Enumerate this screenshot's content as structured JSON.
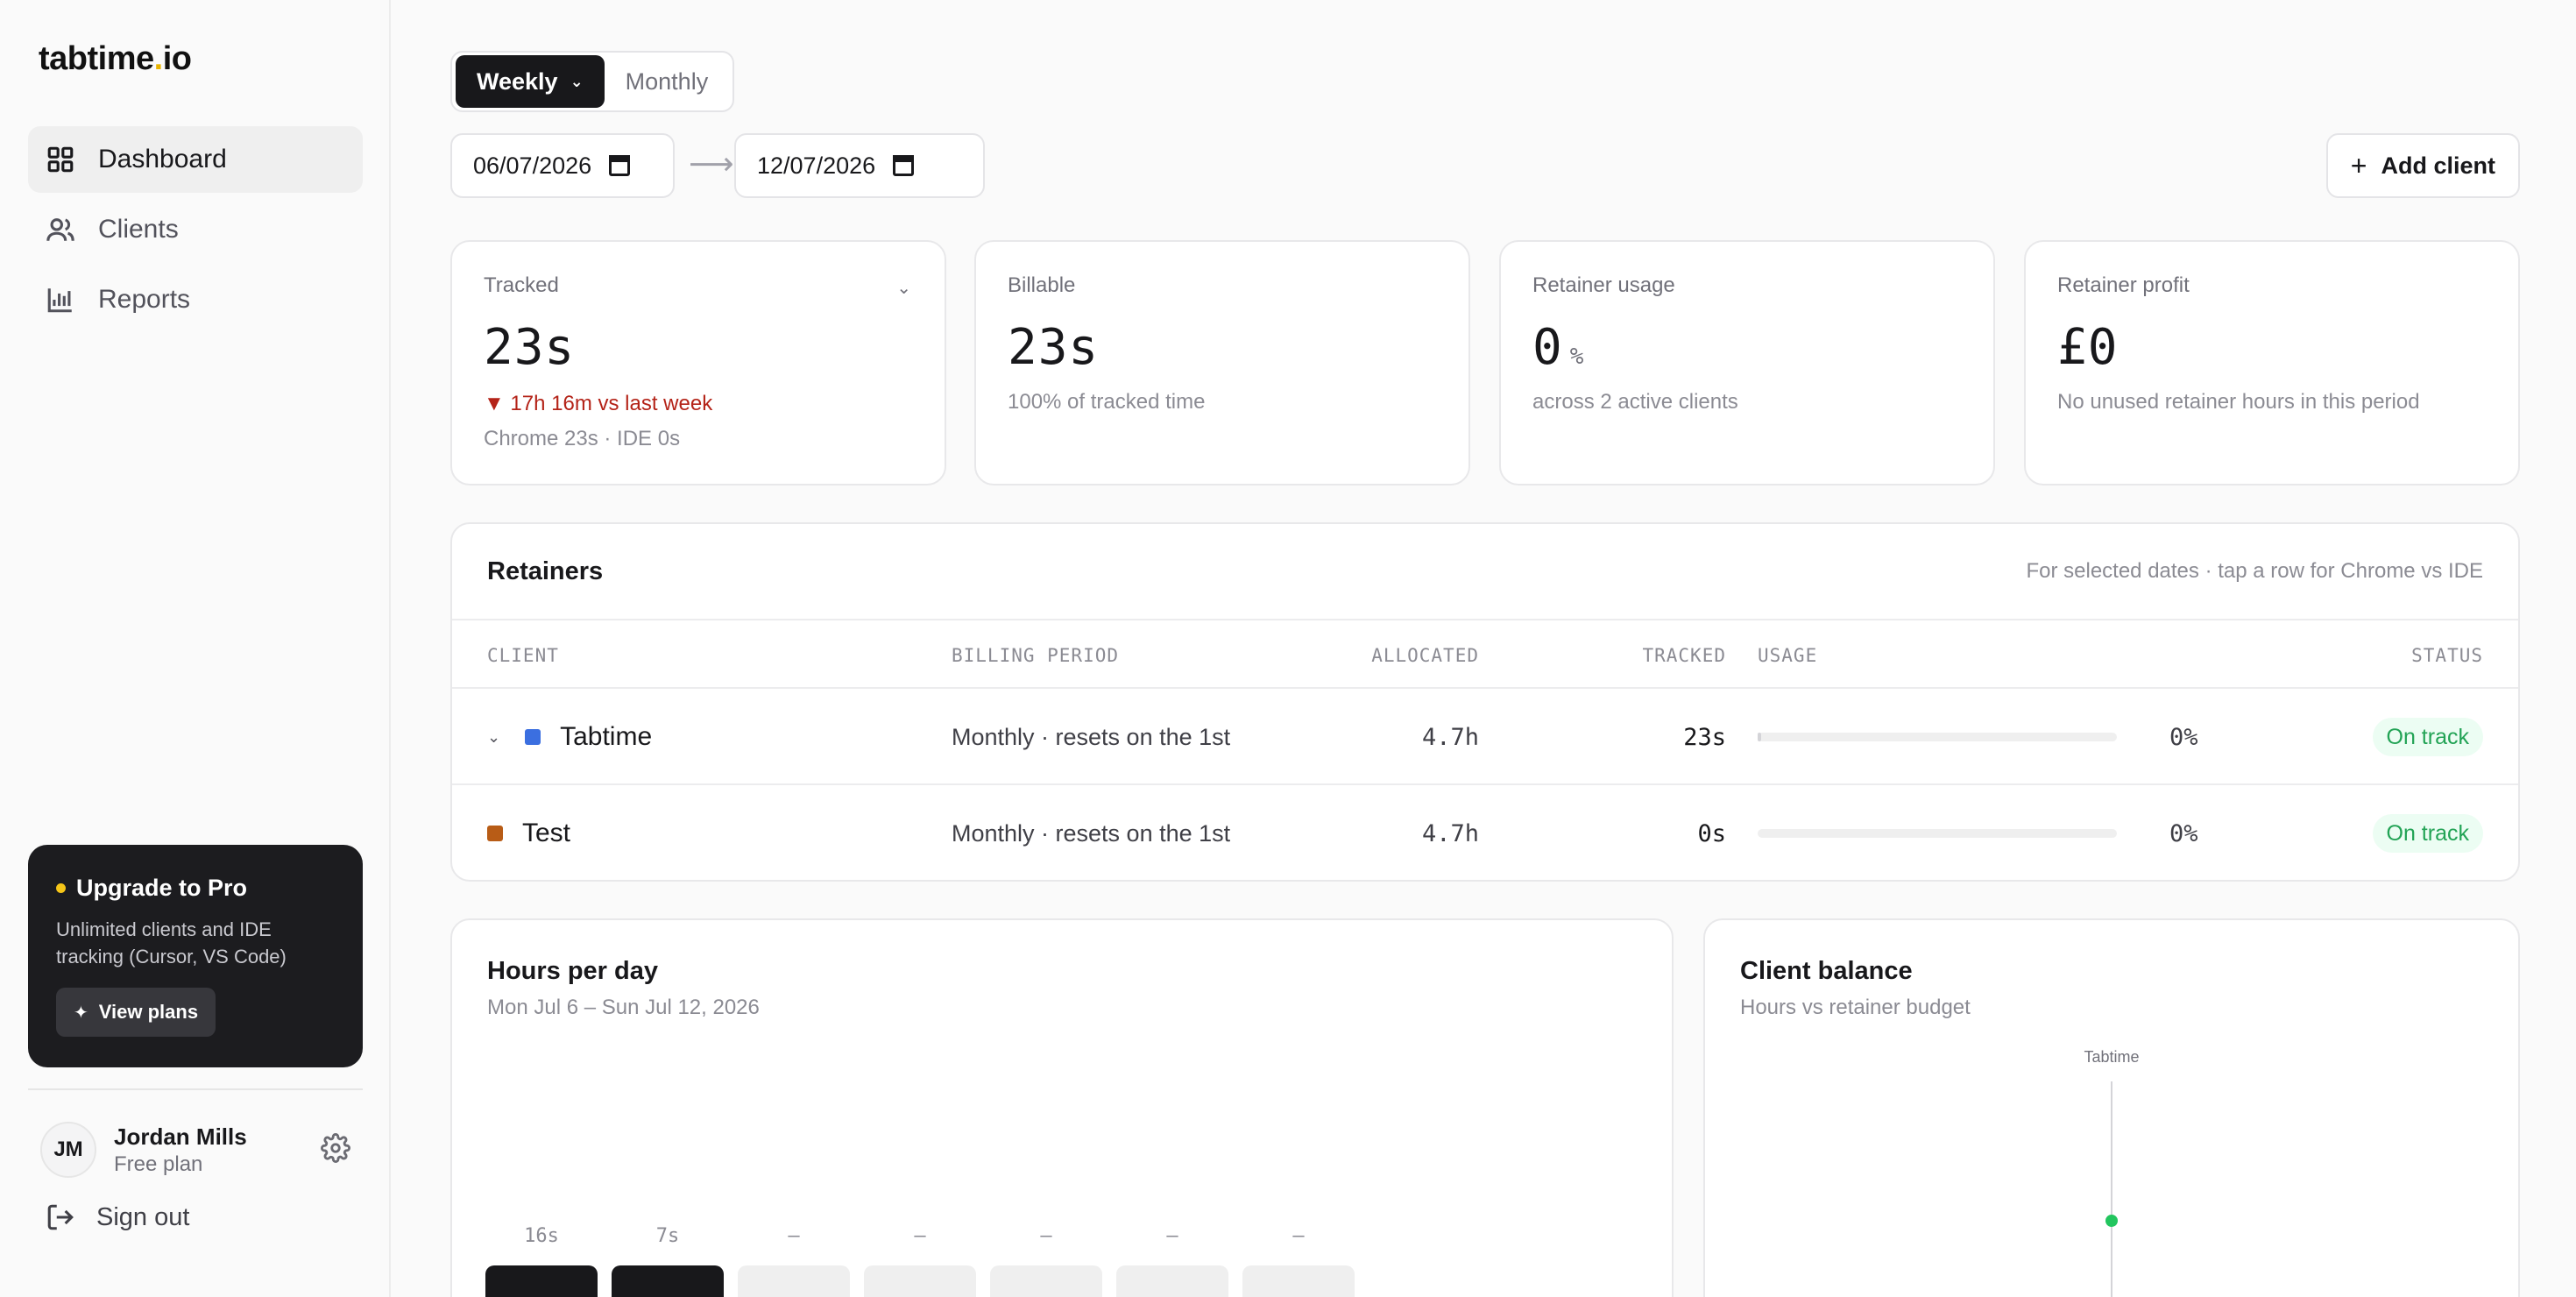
{
  "brand": {
    "name": "tabtime",
    "dot": ".",
    "tld": "io"
  },
  "sidebar": {
    "items": [
      {
        "label": "Dashboard",
        "icon": "grid-icon",
        "active": true
      },
      {
        "label": "Clients",
        "icon": "users-icon",
        "active": false
      },
      {
        "label": "Reports",
        "icon": "bar-chart-icon",
        "active": false
      }
    ],
    "upgrade": {
      "title": "Upgrade to Pro",
      "text": "Unlimited clients and IDE tracking (Cursor, VS Code)",
      "button": "View plans"
    },
    "user": {
      "initials": "JM",
      "name": "Jordan Mills",
      "plan": "Free plan"
    },
    "signout": "Sign out"
  },
  "controls": {
    "period_tabs": [
      {
        "label": "Weekly",
        "active": true
      },
      {
        "label": "Monthly",
        "active": false
      }
    ],
    "start_date": "06/07/2026",
    "end_date": "12/07/2026",
    "arrow": "⟶",
    "add_client": "Add client"
  },
  "stats": [
    {
      "label": "Tracked",
      "value": "23s",
      "delta": "▼ 17h 16m vs last week",
      "sub": "Chrome 23s · IDE 0s"
    },
    {
      "label": "Billable",
      "value": "23s",
      "sub": "100% of tracked time"
    },
    {
      "label": "Retainer usage",
      "value": "0",
      "unit": "%",
      "sub": "across 2 active clients"
    },
    {
      "label": "Retainer profit",
      "value": "£0",
      "sub": "No unused retainer hours in this period"
    }
  ],
  "retainers": {
    "title": "Retainers",
    "hint": "For selected dates · tap a row for Chrome vs IDE",
    "columns": [
      "CLIENT",
      "BILLING PERIOD",
      "ALLOCATED",
      "TRACKED",
      "USAGE",
      "STATUS"
    ],
    "rows": [
      {
        "client": "Tabtime",
        "color": "#3b6fe0",
        "expandable": true,
        "billing": "Monthly · resets on the 1st",
        "allocated": "4.7h",
        "tracked": "23s",
        "usage_fraction": 0.002,
        "usage": "0%",
        "status": "On track"
      },
      {
        "client": "Test",
        "color": "#b85c16",
        "expandable": false,
        "billing": "Monthly · resets on the 1st",
        "allocated": "4.7h",
        "tracked": "0s",
        "usage_fraction": 0,
        "usage": "0%",
        "status": "On track"
      }
    ]
  },
  "hours_per_day": {
    "title": "Hours per day",
    "subtitle": "Mon Jul 6 – Sun Jul 12, 2026",
    "days": [
      {
        "value": "16s",
        "filled": true
      },
      {
        "value": "7s",
        "filled": true
      },
      {
        "value": "—",
        "filled": false
      },
      {
        "value": "—",
        "filled": false
      },
      {
        "value": "—",
        "filled": false
      },
      {
        "value": "—",
        "filled": false
      },
      {
        "value": "—",
        "filled": false
      }
    ]
  },
  "client_balance": {
    "title": "Client balance",
    "subtitle": "Hours vs retainer budget",
    "clients": [
      {
        "name": "Tabtime",
        "point_color": "#22c55e"
      }
    ]
  },
  "colors": {
    "accent": "#18181b",
    "success": "#22a355",
    "danger": "#b42318",
    "upgrade_dot": "#f5c518"
  }
}
